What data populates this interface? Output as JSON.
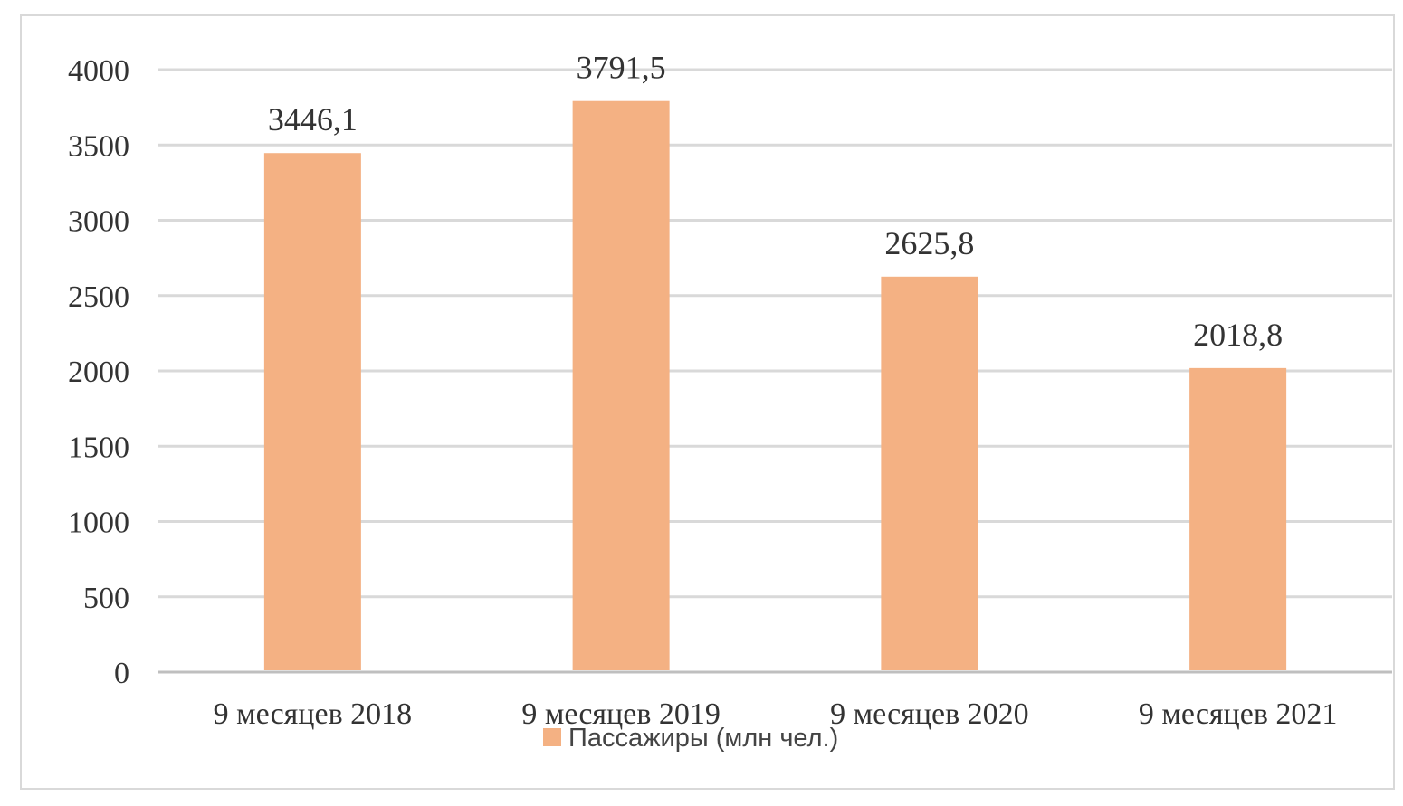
{
  "chart_data": {
    "type": "bar",
    "categories": [
      "9 месяцев 2018",
      "9 месяцев 2019",
      "9 месяцев 2020",
      "9 месяцев 2021"
    ],
    "series": [
      {
        "name": "Пассажиры (млн чел.)",
        "values": [
          3446.1,
          3791.5,
          2625.8,
          2018.8
        ],
        "labels": [
          "3446,1",
          "3791,5",
          "2625,8",
          "2018,8"
        ],
        "color": "#f4b183"
      }
    ],
    "ylim": [
      0,
      4000
    ],
    "yticks": [
      0,
      500,
      1000,
      1500,
      2000,
      2500,
      3000,
      3500,
      4000
    ],
    "grid": true,
    "legend": "bottom",
    "title": "",
    "xlabel": "",
    "ylabel": ""
  }
}
